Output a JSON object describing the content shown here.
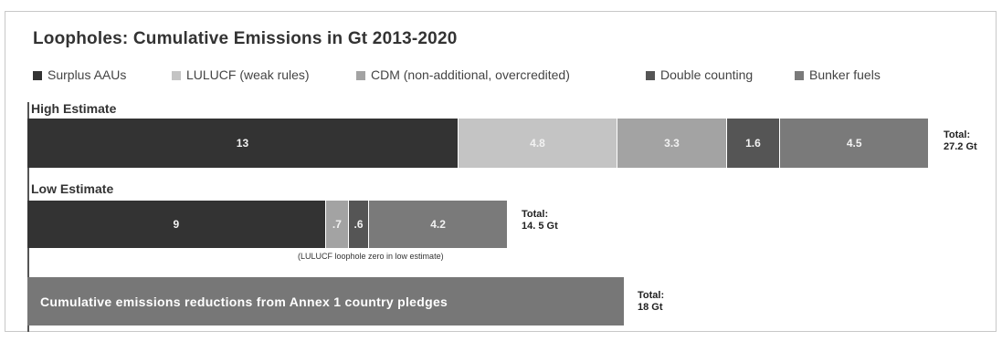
{
  "chart_data": {
    "type": "bar",
    "orientation": "horizontal",
    "stacked": true,
    "title": "Loopholes: Cumulative Emissions in Gt 2013-2020",
    "legend_position": "top",
    "series": [
      {
        "name": "Surplus AAUs",
        "color": "#333333"
      },
      {
        "name": "LULUCF (weak rules)",
        "color": "#c4c4c4"
      },
      {
        "name": "CDM (non-additional, overcredited)",
        "color": "#a3a3a3"
      },
      {
        "name": "Double counting",
        "color": "#555555"
      },
      {
        "name": "Bunker fuels",
        "color": "#7a7a7a"
      }
    ],
    "groups": [
      {
        "label": "High Estimate",
        "segments": [
          {
            "series": "Surplus AAUs",
            "value": 13,
            "label": "13"
          },
          {
            "series": "LULUCF (weak rules)",
            "value": 4.8,
            "label": "4.8"
          },
          {
            "series": "CDM (non-additional, overcredited)",
            "value": 3.3,
            "label": "3.3"
          },
          {
            "series": "Double counting",
            "value": 1.6,
            "label": "1.6"
          },
          {
            "series": "Bunker fuels",
            "value": 4.5,
            "label": "4.5"
          }
        ],
        "total_label": "Total:",
        "total_value": "27.2 Gt"
      },
      {
        "label": "Low Estimate",
        "segments": [
          {
            "series": "Surplus AAUs",
            "value": 9,
            "label": "9"
          },
          {
            "series": "CDM (non-additional, overcredited)",
            "value": 0.7,
            "label": ".7"
          },
          {
            "series": "Double counting",
            "value": 0.6,
            "label": ".6"
          },
          {
            "series": "Bunker fuels",
            "value": 4.2,
            "label": "4.2"
          }
        ],
        "total_label": "Total:",
        "total_value": "14. 5 Gt",
        "note": "(LULUCF loophole zero in low estimate)"
      }
    ],
    "comparison_bar": {
      "label": "Cumulative emissions reductions from Annex 1 country pledges",
      "value": 18,
      "color": "#777777",
      "total_label": "Total:",
      "total_value": "18 Gt"
    }
  }
}
